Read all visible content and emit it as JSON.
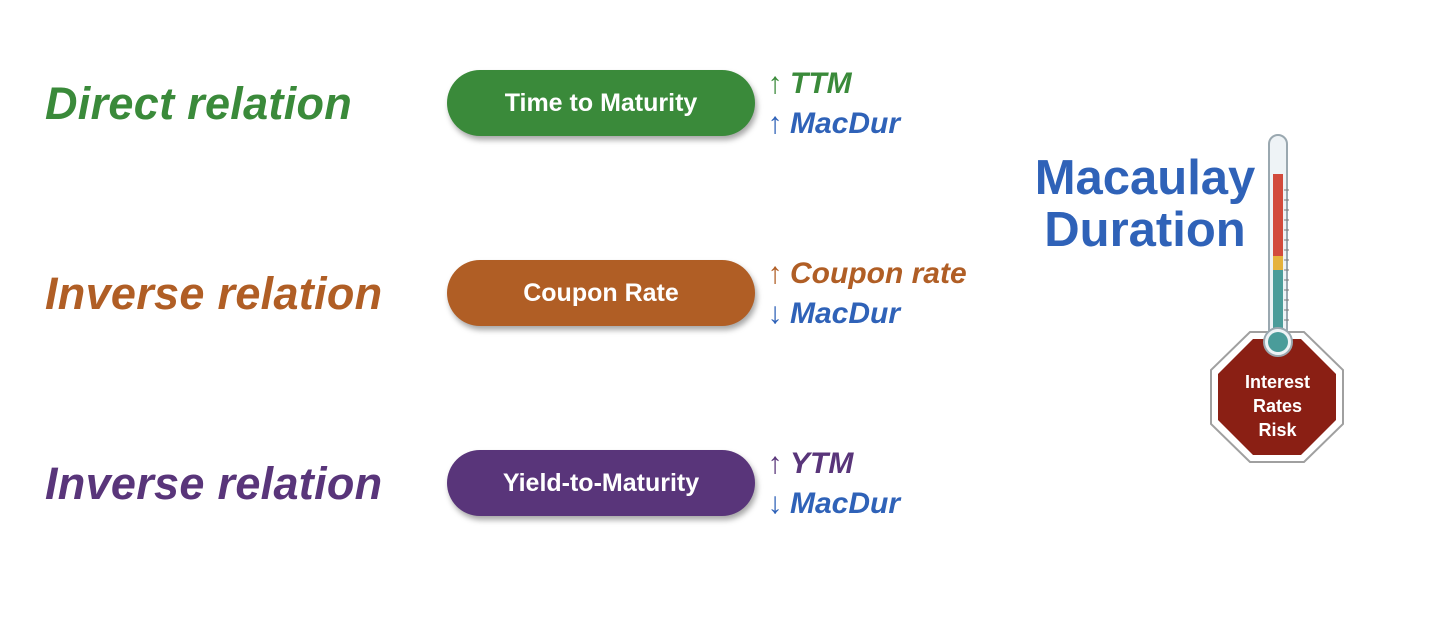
{
  "colors": {
    "direct": "#3a8a3a",
    "coupon": "#b05e25",
    "yield": "#59357a",
    "macdur": "#2f62b8",
    "stop_sign": "#8a1f14"
  },
  "rows": [
    {
      "relation": "Direct relation",
      "pill": "Time to Maturity",
      "effect": [
        {
          "arrow": "↑",
          "term": "TTM"
        },
        {
          "arrow": "↑",
          "term": "MacDur"
        }
      ]
    },
    {
      "relation": "Inverse relation",
      "pill": "Coupon Rate",
      "effect": [
        {
          "arrow": "↑",
          "term": "Coupon rate"
        },
        {
          "arrow": "↓",
          "term": "MacDur"
        }
      ]
    },
    {
      "relation": "Inverse relation",
      "pill": "Yield-to-Maturity",
      "effect": [
        {
          "arrow": "↑",
          "term": "YTM"
        },
        {
          "arrow": "↓",
          "term": "MacDur"
        }
      ]
    }
  ],
  "title": {
    "line1": "Macaulay",
    "line2": "Duration"
  },
  "risk_sign": {
    "line1": "Interest",
    "line2": "Rates",
    "line3": "Risk"
  },
  "icons": {
    "thermometer": "thermometer-icon",
    "stop_sign": "stop-sign-icon"
  }
}
